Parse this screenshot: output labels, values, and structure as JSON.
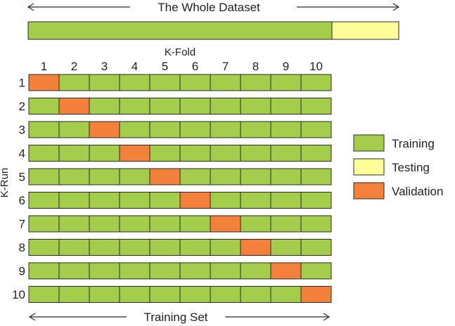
{
  "title": "The Whole Dataset",
  "fold_axis_label": "K-Fold",
  "run_axis_label": "K-Run",
  "bottom_label": "Training Set",
  "folds": [
    "1",
    "2",
    "3",
    "4",
    "5",
    "6",
    "7",
    "8",
    "9",
    "10"
  ],
  "runs": [
    "1",
    "2",
    "3",
    "4",
    "5",
    "6",
    "7",
    "8",
    "9",
    "10"
  ],
  "validation_fold_per_run": [
    1,
    2,
    3,
    4,
    5,
    6,
    7,
    8,
    9,
    10
  ],
  "dataset_split": {
    "training_fraction": 0.82,
    "testing_fraction": 0.18
  },
  "legend": [
    {
      "key": "training",
      "label": "Training",
      "color": "#a3cd4b"
    },
    {
      "key": "testing",
      "label": "Testing",
      "color": "#ffff99"
    },
    {
      "key": "validation",
      "label": "Validation",
      "color": "#f3813c"
    }
  ],
  "colors": {
    "training": "#a3cd4b",
    "testing": "#ffff99",
    "validation": "#f3813c",
    "stroke": "#2b2b2b"
  }
}
